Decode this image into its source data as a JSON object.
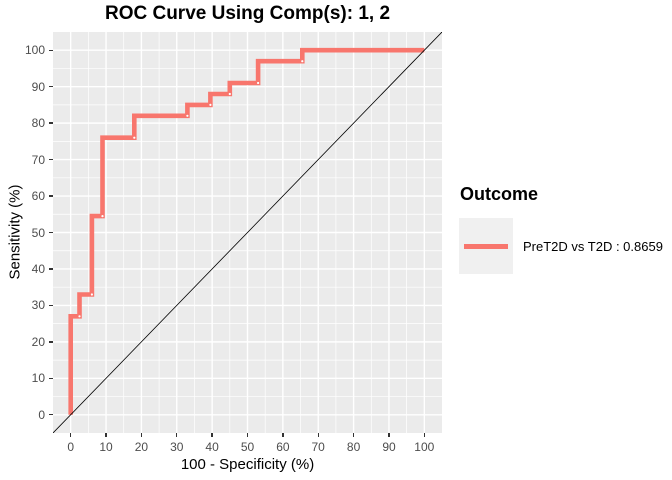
{
  "title": "ROC Curve Using Comp(s): 1, 2",
  "axes": {
    "x": {
      "label": "100 - Specificity (%)",
      "ticks": [
        0,
        10,
        20,
        30,
        40,
        50,
        60,
        70,
        80,
        90,
        100
      ]
    },
    "y": {
      "label": "Sensitivity (%)",
      "ticks": [
        0,
        10,
        20,
        30,
        40,
        50,
        60,
        70,
        80,
        90,
        100
      ]
    }
  },
  "legend": {
    "title": "Outcome",
    "entries": [
      {
        "label": "PreT2D vs T2D : 0.8659",
        "color": "#F8766D",
        "auc": 0.8659
      }
    ]
  },
  "colors": {
    "panel_background": "#EBEBEB",
    "gridline": "#FFFFFF",
    "curve": "#F8766D",
    "diagonal": "#000000",
    "tick_text": "#4d4d4d",
    "tick_mark": "#333333",
    "legend_key_background": "#F0F0F0",
    "marker_dot": "#FFFFFF"
  },
  "chart_data": {
    "type": "line",
    "title": "ROC Curve Using Comp(s): 1, 2",
    "xlabel": "100 - Specificity (%)",
    "ylabel": "Sensitivity (%)",
    "xlim": [
      -5,
      105
    ],
    "ylim": [
      -5,
      105
    ],
    "x_ticks": [
      0,
      10,
      20,
      30,
      40,
      50,
      60,
      70,
      80,
      90,
      100
    ],
    "y_ticks": [
      0,
      10,
      20,
      30,
      40,
      50,
      60,
      70,
      80,
      90,
      100
    ],
    "grid": true,
    "minor_grid": true,
    "legend_position": "right",
    "series": [
      {
        "name": "PreT2D vs T2D",
        "auc": 0.8659,
        "color": "#F8766D",
        "points": [
          [
            0,
            0
          ],
          [
            0,
            27
          ],
          [
            2.5,
            27
          ],
          [
            2.5,
            33
          ],
          [
            6,
            33
          ],
          [
            6,
            54.5
          ],
          [
            9,
            54.5
          ],
          [
            9,
            76
          ],
          [
            18,
            76
          ],
          [
            18,
            82
          ],
          [
            33,
            82
          ],
          [
            33,
            85
          ],
          [
            39.5,
            85
          ],
          [
            39.5,
            88
          ],
          [
            45,
            88
          ],
          [
            45,
            91
          ],
          [
            53,
            91
          ],
          [
            53,
            97
          ],
          [
            65.5,
            97
          ],
          [
            65.5,
            100
          ],
          [
            100,
            100
          ]
        ],
        "marker_points": [
          [
            2.5,
            27
          ],
          [
            6,
            33
          ],
          [
            9,
            54.5
          ],
          [
            18,
            76
          ],
          [
            33,
            82
          ],
          [
            39.5,
            85
          ],
          [
            45,
            88
          ],
          [
            53,
            91
          ],
          [
            65.5,
            97
          ]
        ]
      }
    ],
    "reference_line": {
      "type": "chance-diagonal",
      "y_equals_x": true
    }
  }
}
